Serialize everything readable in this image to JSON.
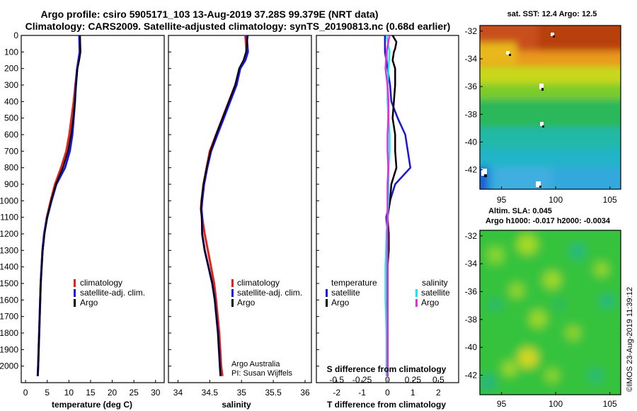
{
  "title": {
    "line1": "Argo profile: csiro 5905171_103 13-Aug-2019 37.28S 99.379E (NRT data)",
    "line2": "Climatology: CARS2009. Satellite-adjusted climatology: synTS_20190813.nc (0.68d earlier)"
  },
  "colors": {
    "climatology": "#e8201c",
    "satellite": "#1a14d8",
    "argo": "#000000",
    "sat_salinity": "#19e6e6",
    "argo_salinity_diff": "#e62ee0"
  },
  "chart_data": [
    {
      "type": "line",
      "name": "temperature",
      "xlabel": "temperature (deg C)",
      "ylabel": "",
      "xlim": [
        -1,
        32
      ],
      "ylim": [
        2100,
        0
      ],
      "xticks": [
        "0",
        "5",
        "10",
        "15",
        "20",
        "25",
        "30"
      ],
      "yticks": [
        "0",
        "100",
        "200",
        "300",
        "400",
        "500",
        "600",
        "700",
        "800",
        "900",
        "1000",
        "1100",
        "1200",
        "1300",
        "1400",
        "1500",
        "1600",
        "1700",
        "1800",
        "1900",
        "2000"
      ],
      "legend": [
        "climatology",
        "satellite-adj. clim.",
        "Argo"
      ],
      "series": [
        {
          "name": "climatology",
          "depth": [
            0,
            100,
            150,
            200,
            300,
            400,
            500,
            600,
            700,
            800,
            900,
            1000,
            1100,
            1200,
            1300,
            1500,
            2000,
            2060
          ],
          "values": [
            12.5,
            12.6,
            12.3,
            11.9,
            11.5,
            11.1,
            10.6,
            10.1,
            9.4,
            8.2,
            6.8,
            5.8,
            4.9,
            4.3,
            3.9,
            3.5,
            2.9,
            2.8
          ]
        },
        {
          "name": "satellite-adj. clim.",
          "depth": [
            0,
            100,
            150,
            200,
            300,
            400,
            500,
            600,
            700,
            800,
            900,
            1000,
            1100,
            1200,
            1300,
            1500,
            2000,
            2060
          ],
          "values": [
            12.4,
            12.5,
            12.2,
            11.9,
            11.6,
            11.4,
            11.1,
            10.8,
            10.2,
            9.1,
            7.1,
            6.0,
            5.0,
            4.3,
            3.9,
            3.5,
            2.9,
            2.8
          ]
        },
        {
          "name": "Argo",
          "depth": [
            0,
            100,
            150,
            200,
            300,
            400,
            500,
            600,
            700,
            800,
            900,
            1000,
            1100,
            1200,
            1300,
            1500,
            2000,
            2060
          ],
          "values": [
            12.6,
            12.7,
            12.4,
            12.0,
            11.7,
            11.4,
            11.0,
            10.5,
            9.8,
            8.6,
            7.0,
            5.9,
            5.0,
            4.4,
            4.0,
            3.5,
            2.9,
            2.8
          ]
        }
      ]
    },
    {
      "type": "line",
      "name": "salinity",
      "xlabel": "salinity",
      "xlim": [
        33.85,
        36.1
      ],
      "ylim": [
        2100,
        0
      ],
      "xticks": [
        "34",
        "34.5",
        "35",
        "35.5",
        "36"
      ],
      "legend": [
        "climatology",
        "satellite-adj. clim.",
        "Argo"
      ],
      "credit": [
        "Argo Australia",
        "PI: Susan Wijffels"
      ],
      "series": [
        {
          "name": "climatology",
          "depth": [
            0,
            100,
            150,
            200,
            300,
            400,
            500,
            600,
            700,
            800,
            900,
            1000,
            1050,
            1100,
            1200,
            1300,
            1400,
            1500,
            1600,
            1800,
            2000,
            2060
          ],
          "values": [
            35.06,
            35.08,
            35.05,
            34.97,
            34.9,
            34.8,
            34.7,
            34.6,
            34.5,
            34.45,
            34.4,
            34.37,
            34.36,
            34.38,
            34.42,
            34.47,
            34.52,
            34.57,
            34.6,
            34.65,
            34.68,
            34.7
          ]
        },
        {
          "name": "satellite-adj. clim.",
          "depth": [
            0,
            100,
            150,
            200,
            300,
            400,
            500,
            600,
            700,
            800,
            900,
            1000,
            1050,
            1100,
            1200,
            1300,
            1400,
            1500,
            1600,
            1800,
            2000,
            2060
          ],
          "values": [
            35.08,
            35.1,
            35.06,
            34.98,
            34.92,
            34.82,
            34.72,
            34.62,
            34.52,
            34.46,
            34.41,
            34.38,
            34.37,
            34.38,
            34.38,
            34.42,
            34.48,
            34.54,
            34.58,
            34.63,
            34.66,
            34.67
          ]
        },
        {
          "name": "Argo",
          "depth": [
            0,
            100,
            150,
            200,
            300,
            400,
            500,
            600,
            700,
            800,
            900,
            1000,
            1050,
            1100,
            1200,
            1300,
            1400,
            1500,
            1600,
            1800,
            2000,
            2060
          ],
          "values": [
            35.1,
            35.07,
            35.03,
            34.96,
            34.9,
            34.8,
            34.7,
            34.6,
            34.51,
            34.45,
            34.4,
            34.37,
            34.36,
            34.37,
            34.38,
            34.42,
            34.48,
            34.54,
            34.58,
            34.63,
            34.66,
            34.67
          ]
        }
      ]
    },
    {
      "type": "line",
      "name": "differences",
      "xlabel": "T difference from climatology",
      "top_label": "S difference from climatology",
      "xlim": [
        -2.8,
        2.8
      ],
      "s_xlim": [
        -0.7,
        0.7
      ],
      "ylim": [
        2100,
        0
      ],
      "xticks": [
        "-2",
        "-1",
        "0",
        "1",
        "2"
      ],
      "s_xticks": [
        "-0.5",
        "-0.25",
        "0",
        "0.25",
        "0.5"
      ],
      "legend_temperature_header": "temperature",
      "legend_salinity_header": "salinity",
      "legend_temperature": [
        "satellite",
        "Argo"
      ],
      "legend_salinity": [
        "satellite",
        "Argo"
      ],
      "series": [
        {
          "name": "T satellite",
          "axis": "T",
          "depth": [
            0,
            100,
            200,
            300,
            400,
            500,
            600,
            700,
            800,
            900,
            1000,
            1100,
            1200,
            1300,
            1500,
            2000,
            2060
          ],
          "values": [
            -0.1,
            -0.1,
            0.0,
            0.1,
            0.15,
            0.4,
            0.7,
            0.8,
            0.9,
            0.3,
            0.1,
            -0.05,
            0.0,
            0.0,
            0.0,
            0.0,
            0.0
          ]
        },
        {
          "name": "T Argo",
          "axis": "T",
          "depth": [
            0,
            40,
            80,
            100,
            150,
            200,
            300,
            400,
            500,
            600,
            700,
            800,
            900,
            1000,
            1100,
            1200,
            1300,
            1400,
            1500,
            1700,
            2000,
            2060
          ],
          "values": [
            0.2,
            0.35,
            0.3,
            0.25,
            0.2,
            0.3,
            0.3,
            0.25,
            0.2,
            0.3,
            0.3,
            0.35,
            0.15,
            0.1,
            0.0,
            0.05,
            0.05,
            0.0,
            0.0,
            0.0,
            0.0,
            0.0
          ]
        },
        {
          "name": "S satellite",
          "axis": "S",
          "depth": [
            0,
            100,
            200,
            300,
            400,
            500,
            600,
            700,
            800,
            900,
            1000,
            1100,
            1200,
            1400,
            1600,
            1800,
            2000,
            2060
          ],
          "values": [
            -0.01,
            0.02,
            0.01,
            0.0,
            0.0,
            0.01,
            0.02,
            0.02,
            0.01,
            0.01,
            0.01,
            0.0,
            -0.01,
            -0.02,
            -0.02,
            -0.01,
            -0.01,
            -0.01
          ]
        },
        {
          "name": "S Argo",
          "axis": "S",
          "depth": [
            0,
            100,
            200,
            300,
            400,
            500,
            600,
            700,
            800,
            900,
            1000,
            1100,
            1200,
            1400,
            1600,
            1800,
            2000,
            2060
          ],
          "values": [
            0.02,
            -0.01,
            -0.02,
            0.0,
            0.01,
            0.01,
            0.0,
            0.0,
            0.01,
            0.0,
            0.0,
            0.0,
            0.0,
            0.0,
            0.0,
            0.0,
            0.0,
            0.0
          ]
        }
      ]
    },
    {
      "type": "heatmap",
      "name": "sst-map",
      "title": "sat. SST: 12.4  Argo: 12.5",
      "xticks": [
        "95",
        "100",
        "105"
      ],
      "yticks": [
        "-32",
        "-34",
        "-36",
        "-38",
        "-40",
        "-42"
      ],
      "xlim": [
        93,
        106
      ],
      "ylim": [
        -43.4,
        -31.6
      ]
    },
    {
      "type": "heatmap",
      "name": "sla-map",
      "title_line1": "Altim. SLA: 0.045",
      "title_line2": "Argo h1000: -0.017 h2000: -0.0034",
      "xticks": [
        "95",
        "100",
        "105"
      ],
      "yticks": [
        "-32",
        "-34",
        "-36",
        "-38",
        "-40",
        "-42"
      ],
      "xlim": [
        93,
        106
      ],
      "ylim": [
        -43.4,
        -31.6
      ]
    }
  ],
  "watermark": "©IMOS 23-Aug-2019 11:39:12"
}
